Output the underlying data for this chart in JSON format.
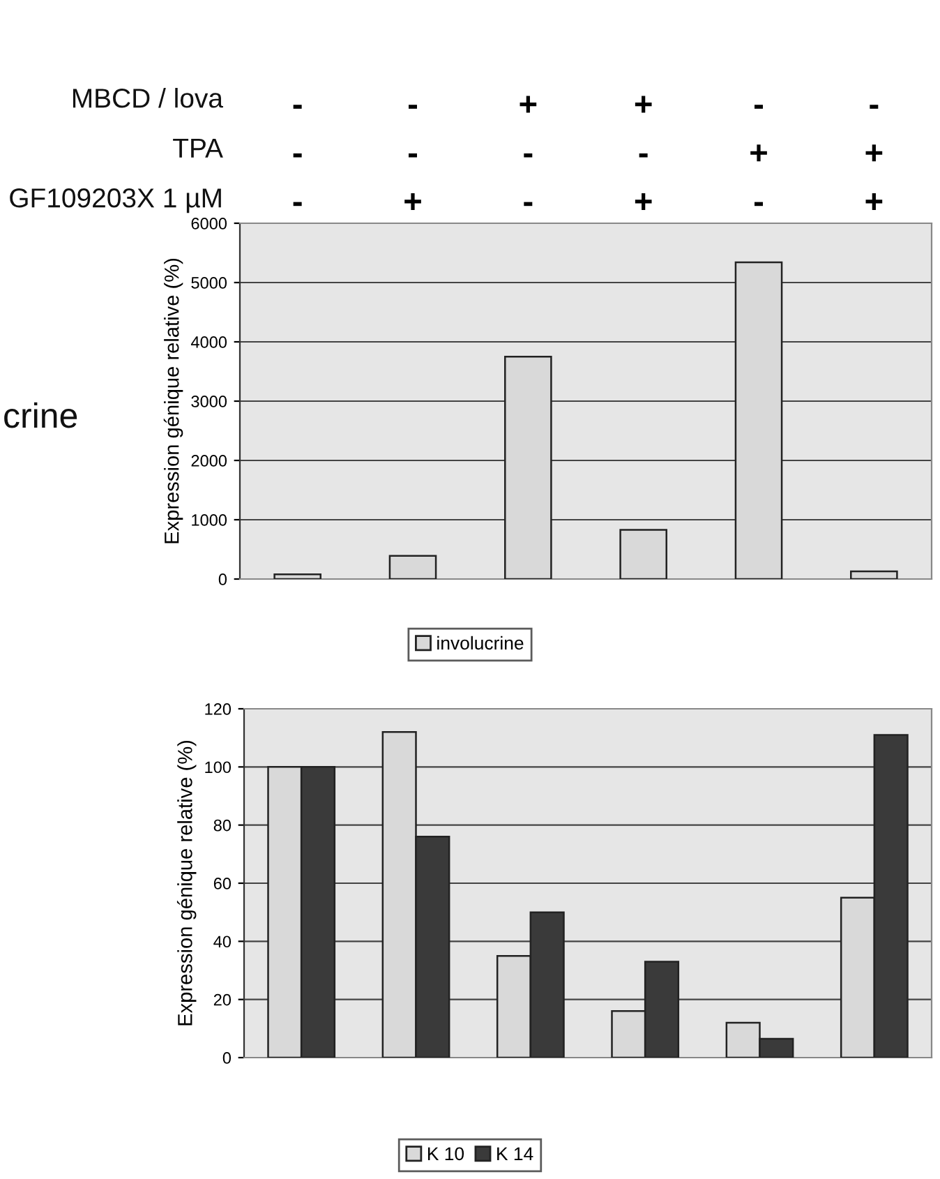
{
  "chart_data": [
    {
      "type": "bar",
      "ylabel": "Expression génique relative (%)",
      "categories": [
        "-\n-\n-",
        "-\n-\n+",
        "+\n-\n-",
        "+\n-\n+",
        "-\n+\n-",
        "-\n+\n+"
      ],
      "series": [
        {
          "name": "involucrine",
          "color": "#d9d9d9",
          "values": [
            80,
            390,
            3750,
            830,
            5340,
            130
          ]
        }
      ],
      "ylim": [
        0,
        6000
      ],
      "yticks": [
        0,
        1000,
        2000,
        3000,
        4000,
        5000,
        6000
      ],
      "grid": "y",
      "legend": "bottom",
      "annotations": [
        "MBCD / lova\nTPA\nGF109203X 1 µM",
        "crine"
      ]
    },
    {
      "type": "bar",
      "ylabel": "Expression génique relative (%)",
      "categories": [
        null,
        null,
        null,
        null,
        null,
        null
      ],
      "series": [
        {
          "name": "K 10",
          "color": "#d9d9d9",
          "values": [
            100,
            112,
            35,
            16,
            12,
            55
          ]
        },
        {
          "name": "K 14",
          "color": "#3a3a3a",
          "values": [
            100,
            76,
            50,
            33,
            6.5,
            111
          ]
        }
      ],
      "ylim": [
        0,
        120
      ],
      "yticks": [
        0,
        20,
        40,
        60,
        80,
        100,
        120
      ],
      "grid": "y",
      "legend": "bottom"
    }
  ]
}
